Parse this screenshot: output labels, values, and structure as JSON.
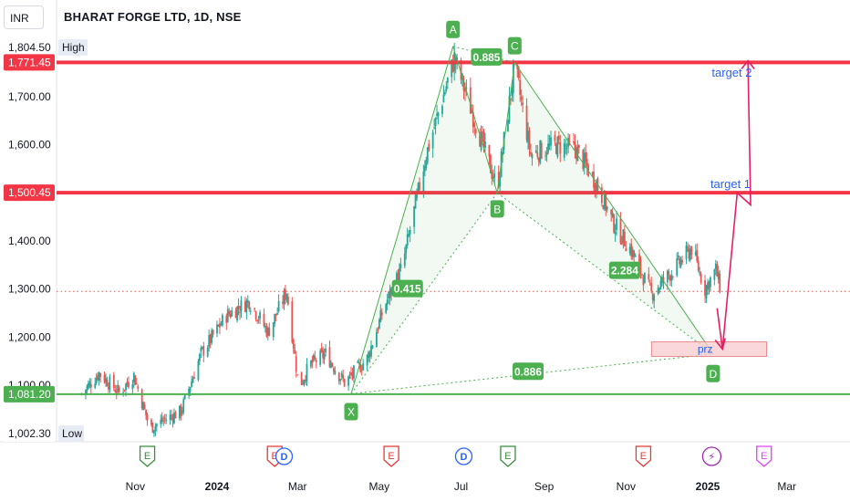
{
  "header": {
    "currency": "INR",
    "symbol_title": "BHARAT FORGE LTD, 1D, NSE"
  },
  "colors": {
    "up": "#26a69a",
    "down": "#ef5350",
    "resistance": "#f23645",
    "support": "#4caf50",
    "pattern": "#4caf50",
    "arrow": "#e91e63",
    "target_text": "#2962ff",
    "prz_fill": "#f8c9cc",
    "last_price": "#ef5350"
  },
  "chart_data": {
    "type": "candlestick",
    "title": "BHARAT FORGE LTD, 1D, NSE",
    "ylim": [
      990,
      1830
    ],
    "y_ticks": [
      "1,700.00",
      "1,600.00",
      "1,400.00",
      "1,300.00",
      "1,200.00",
      "1,100.00"
    ],
    "y_tick_values": [
      1700,
      1600,
      1400,
      1300,
      1200,
      1100
    ],
    "high": {
      "value": "1,804.50",
      "label": "High"
    },
    "low": {
      "value": "1,002.30",
      "label": "Low"
    },
    "x_labels": [
      "Nov",
      "2024",
      "Mar",
      "May",
      "Jul",
      "Sep",
      "Nov",
      "2025",
      "Mar"
    ],
    "x_label_dates": [
      "2023-11-01",
      "2024-01-01",
      "2024-03-01",
      "2024-05-01",
      "2024-07-01",
      "2024-09-01",
      "2024-11-01",
      "2025-01-01",
      "2025-03-01"
    ],
    "date_range": [
      "2023-09-20",
      "2025-03-25"
    ],
    "last_price": 1295,
    "price_path": [
      [
        "2023-09-22",
        1082
      ],
      [
        "2023-10-05",
        1125
      ],
      [
        "2023-10-20",
        1085
      ],
      [
        "2023-10-31",
        1120
      ],
      [
        "2023-11-12",
        1010
      ],
      [
        "2023-11-25",
        1032
      ],
      [
        "2023-12-05",
        1045
      ],
      [
        "2023-12-20",
        1165
      ],
      [
        "2024-01-08",
        1245
      ],
      [
        "2024-01-25",
        1275
      ],
      [
        "2024-02-08",
        1210
      ],
      [
        "2024-02-22",
        1295
      ],
      [
        "2024-03-02",
        1095
      ],
      [
        "2024-03-10",
        1142
      ],
      [
        "2024-03-22",
        1165
      ],
      [
        "2024-04-05",
        1105
      ],
      [
        "2024-04-22",
        1155
      ],
      [
        "2024-05-05",
        1265
      ],
      [
        "2024-05-18",
        1345
      ],
      [
        "2024-06-05",
        1580
      ],
      [
        "2024-06-26",
        1780
      ],
      [
        "2024-07-10",
        1660
      ],
      [
        "2024-07-28",
        1510
      ],
      [
        "2024-08-10",
        1765
      ],
      [
        "2024-08-22",
        1580
      ],
      [
        "2024-09-10",
        1600
      ],
      [
        "2024-09-25",
        1590
      ],
      [
        "2024-10-10",
        1520
      ],
      [
        "2024-10-22",
        1440
      ],
      [
        "2024-11-05",
        1380
      ],
      [
        "2024-11-20",
        1290
      ],
      [
        "2024-12-08",
        1345
      ],
      [
        "2024-12-20",
        1385
      ],
      [
        "2024-12-30",
        1300
      ],
      [
        "2025-01-07",
        1340
      ],
      [
        "2025-01-11",
        1295
      ]
    ],
    "levels": [
      {
        "name": "resistance-2",
        "value": 1771.45,
        "label": "1,771.45",
        "kind": "resistance"
      },
      {
        "name": "resistance-1",
        "value": 1500.45,
        "label": "1,500.45",
        "kind": "resistance"
      },
      {
        "name": "support",
        "value": 1081.2,
        "label": "1,081.20",
        "kind": "support"
      }
    ],
    "harmonic_points": [
      {
        "label": "X",
        "date": "2024-04-10",
        "price": 1082
      },
      {
        "label": "A",
        "date": "2024-06-25",
        "price": 1805
      },
      {
        "label": "B",
        "date": "2024-07-28",
        "price": 1500
      },
      {
        "label": "C",
        "date": "2024-08-10",
        "price": 1771
      },
      {
        "label": "D",
        "date": "2025-01-05",
        "price": 1165
      }
    ],
    "ratios": [
      {
        "label": "0.885",
        "date": "2024-07-20",
        "price": 1782
      },
      {
        "label": "0.415",
        "date": "2024-05-22",
        "price": 1300
      },
      {
        "label": "2.284",
        "date": "2024-10-31",
        "price": 1338
      },
      {
        "label": "0.886",
        "date": "2024-08-20",
        "price": 1128
      }
    ],
    "prz": {
      "label": "prz",
      "date_from": "2024-11-20",
      "date_to": "2025-02-14",
      "price_from": 1160,
      "price_to": 1190
    },
    "projection": {
      "path": [
        [
          "2025-01-08",
          1260
        ],
        [
          "2025-01-12",
          1175
        ],
        [
          "2025-01-23",
          1500
        ],
        [
          "2025-02-02",
          1475
        ],
        [
          "2025-01-31",
          1775
        ]
      ],
      "labels": [
        {
          "text": "target 1",
          "date": "2025-01-18",
          "price": 1510
        },
        {
          "text": "target 2",
          "date": "2025-01-19",
          "price": 1742
        }
      ]
    },
    "events": [
      {
        "type": "E",
        "date": "2023-11-10",
        "style": "earnings-green"
      },
      {
        "type": "E",
        "date": "2024-02-13",
        "style": "earnings-red"
      },
      {
        "type": "D",
        "date": "2024-02-20",
        "style": "dividend"
      },
      {
        "type": "E",
        "date": "2024-05-10",
        "style": "earnings-red"
      },
      {
        "type": "D",
        "date": "2024-07-03",
        "style": "dividend"
      },
      {
        "type": "E",
        "date": "2024-08-05",
        "style": "earnings-green"
      },
      {
        "type": "E",
        "date": "2024-11-14",
        "style": "earnings-red"
      },
      {
        "type": "⚡",
        "date": "2025-01-04",
        "style": "split"
      },
      {
        "type": "E",
        "date": "2025-02-12",
        "style": "earnings-future"
      }
    ]
  }
}
